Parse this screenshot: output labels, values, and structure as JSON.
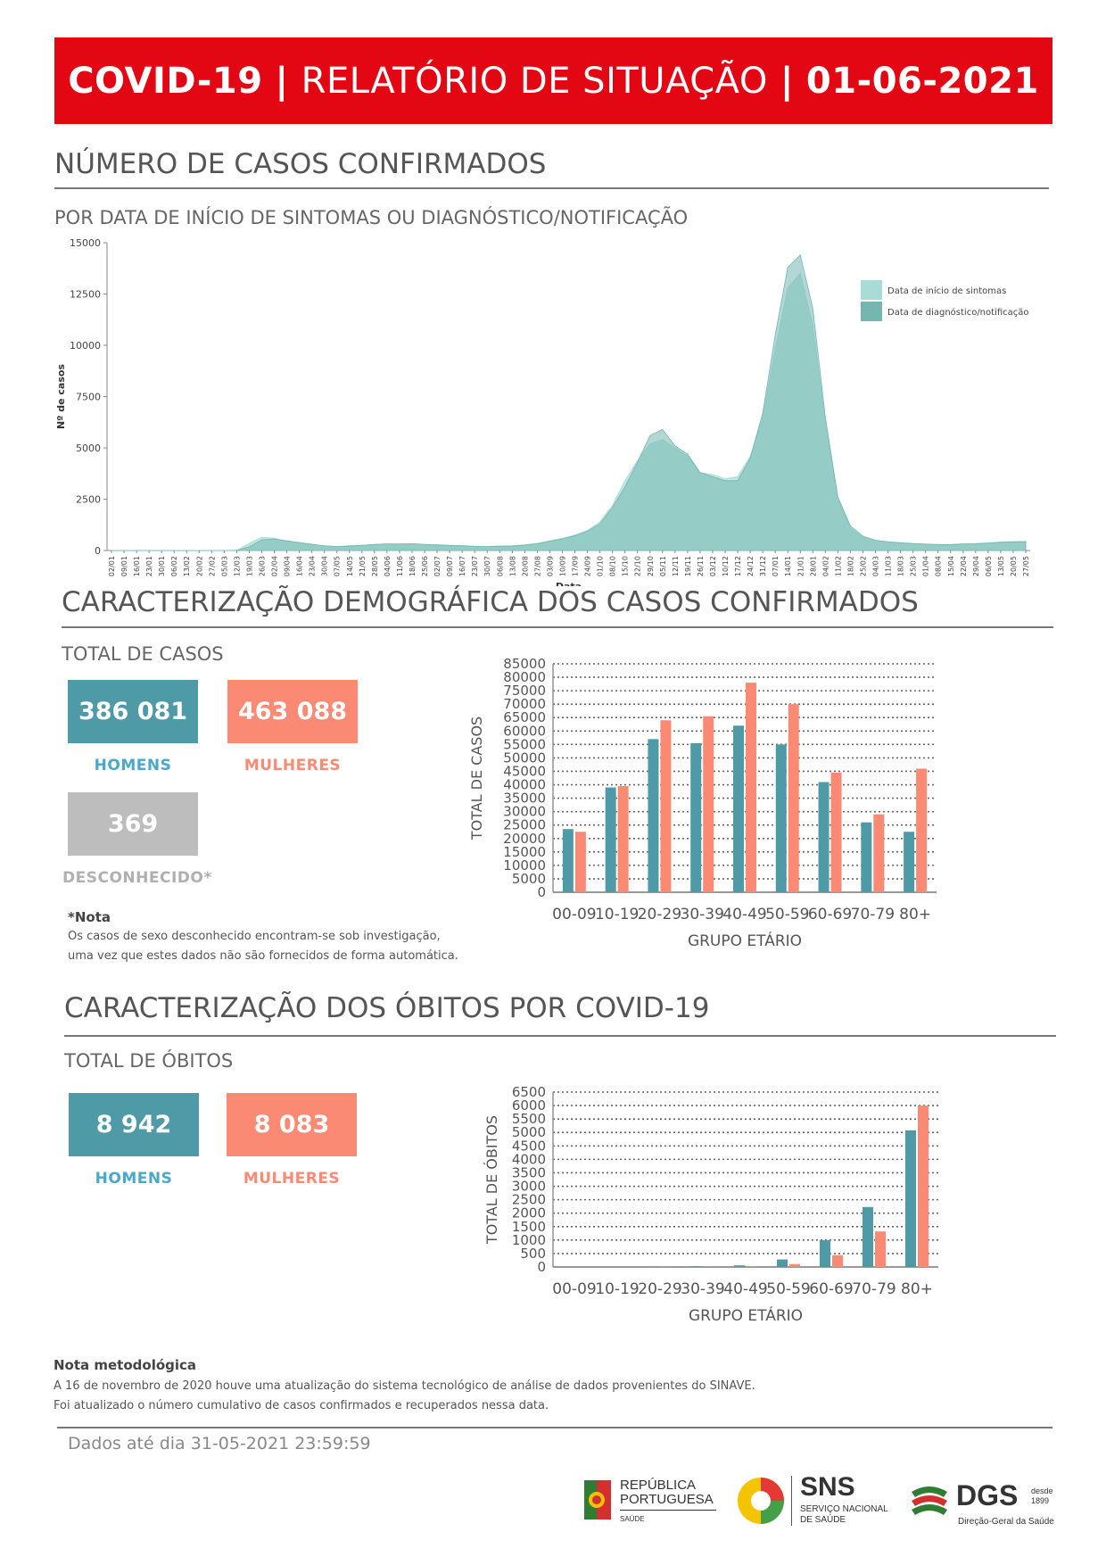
{
  "banner": {
    "part1": "COVID-19",
    "sep1": "|",
    "part2": "RELATÓRIO DE SITUAÇÃO",
    "sep2": "|",
    "date": "01-06-2021"
  },
  "section1": {
    "title": "NÚMERO DE CASOS CONFIRMADOS",
    "subtitle": "POR DATA DE INÍCIO DE SINTOMAS OU DIAGNÓSTICO/NOTIFICAÇÃO"
  },
  "section2": {
    "title": "CARACTERIZAÇÃO DEMOGRÁFICA DOS CASOS CONFIRMADOS",
    "subtitle": "TOTAL DE CASOS",
    "men_value": "386 081",
    "men_label": "HOMENS",
    "women_value": "463 088",
    "women_label": "MULHERES",
    "unknown_value": "369",
    "unknown_label": "DESCONHECIDO*",
    "note_title": "*Nota",
    "note_line1": "Os casos de sexo desconhecido encontram-se sob investigação,",
    "note_line2": "uma vez que estes dados não são fornecidos de forma automática."
  },
  "section3": {
    "title": "CARACTERIZAÇÃO DOS ÓBITOS POR COVID-19",
    "subtitle": "TOTAL DE ÓBITOS",
    "men_value": "8 942",
    "men_label": "HOMENS",
    "women_value": "8 083",
    "women_label": "MULHERES"
  },
  "methodology": {
    "title": "Nota metodológica",
    "line1": "A 16 de novembro de 2020 houve uma atualização do sistema tecnológico de análise de dados provenientes do SINAVE.",
    "line2": "Foi atualizado o número cumulativo de casos confirmados e recuperados nessa data."
  },
  "footer": {
    "data_until": "Dados até dia 31-05-2021 23:59:59",
    "logo_rp_line1": "REPÚBLICA",
    "logo_rp_line2": "PORTUGUESA",
    "logo_rp_line3": "SAÚDE",
    "logo_sns": "SNS",
    "logo_sns_sub1": "SERVIÇO NACIONAL",
    "logo_sns_sub2": "DE SAÚDE",
    "logo_dgs": "DGS",
    "logo_dgs_since1": "desde",
    "logo_dgs_since2": "1899",
    "logo_dgs_sub": "Direção-Geral da Saúde"
  },
  "colors": {
    "banner": "#e30613",
    "men": "#4e9aa6",
    "women": "#fa8a74",
    "unknown": "#bdbdbd",
    "symptoms": "#a8ddd6",
    "diagnosis": "#74b6b0"
  },
  "chart_data": [
    {
      "type": "area",
      "title": "",
      "xlabel": "Data",
      "ylabel": "Nº de casos",
      "ylim": [
        0,
        15000
      ],
      "yticks": [
        0,
        2500,
        5000,
        7500,
        10000,
        12500,
        15000
      ],
      "legend_position": "top-right",
      "x_ticks": [
        "02/01",
        "09/01",
        "16/01",
        "23/01",
        "30/01",
        "06/02",
        "13/02",
        "20/02",
        "27/02",
        "05/03",
        "12/03",
        "19/03",
        "26/03",
        "02/04",
        "09/04",
        "16/04",
        "23/04",
        "30/04",
        "07/05",
        "14/05",
        "21/05",
        "28/05",
        "04/06",
        "11/06",
        "18/06",
        "25/06",
        "02/07",
        "09/07",
        "16/07",
        "23/07",
        "30/07",
        "06/08",
        "13/08",
        "20/08",
        "27/08",
        "03/09",
        "10/09",
        "17/09",
        "24/09",
        "01/10",
        "08/10",
        "15/10",
        "22/10",
        "29/10",
        "05/11",
        "12/11",
        "19/11",
        "26/11",
        "03/12",
        "10/12",
        "17/12",
        "24/12",
        "31/12",
        "07/01",
        "14/01",
        "21/01",
        "28/01",
        "04/02",
        "11/02",
        "18/02",
        "25/02",
        "04/03",
        "11/03",
        "18/03",
        "25/03",
        "01/04",
        "08/04",
        "15/04",
        "22/04",
        "29/04",
        "06/05",
        "13/05",
        "20/05",
        "27/05"
      ],
      "series": [
        {
          "name": "Data de início de sintomas",
          "values": [
            0,
            0,
            0,
            0,
            0,
            0,
            0,
            0,
            0,
            0,
            20,
            350,
            650,
            600,
            450,
            380,
            300,
            220,
            200,
            230,
            260,
            300,
            330,
            320,
            330,
            300,
            280,
            260,
            240,
            210,
            200,
            220,
            230,
            280,
            350,
            480,
            600,
            760,
            980,
            1400,
            2200,
            3400,
            4400,
            5200,
            5400,
            5000,
            4600,
            3800,
            3700,
            3500,
            3600,
            4600,
            6500,
            9800,
            12800,
            13500,
            11000,
            6200,
            2500,
            1100,
            650,
            480,
            420,
            380,
            340,
            320,
            300,
            300,
            330,
            340,
            380,
            420,
            440,
            450
          ]
        },
        {
          "name": "Data de diagnóstico/notificação",
          "values": [
            0,
            0,
            0,
            0,
            0,
            0,
            0,
            0,
            0,
            0,
            5,
            180,
            520,
            560,
            470,
            390,
            310,
            230,
            190,
            220,
            250,
            290,
            320,
            320,
            330,
            300,
            270,
            250,
            230,
            200,
            190,
            210,
            220,
            260,
            330,
            450,
            560,
            720,
            940,
            1300,
            2100,
            3100,
            4300,
            5600,
            5900,
            5100,
            4700,
            3800,
            3600,
            3400,
            3400,
            4500,
            6700,
            10500,
            13800,
            14400,
            11800,
            6500,
            2600,
            1200,
            700,
            500,
            430,
            380,
            340,
            310,
            290,
            280,
            320,
            330,
            360,
            400,
            420,
            430
          ]
        }
      ]
    },
    {
      "type": "bar",
      "xlabel": "GRUPO ETÁRIO",
      "ylabel": "TOTAL DE CASOS",
      "ylim": [
        0,
        85000
      ],
      "yticks": [
        0,
        5000,
        10000,
        15000,
        20000,
        25000,
        30000,
        35000,
        40000,
        45000,
        50000,
        55000,
        60000,
        65000,
        70000,
        75000,
        80000,
        85000
      ],
      "categories": [
        "00-09",
        "10-19",
        "20-29",
        "30-39",
        "40-49",
        "50-59",
        "60-69",
        "70-79",
        "80+"
      ],
      "series": [
        {
          "name": "HOMENS",
          "values": [
            23500,
            39000,
            57000,
            55500,
            62000,
            55000,
            41000,
            26000,
            22500
          ]
        },
        {
          "name": "MULHERES",
          "values": [
            22500,
            39500,
            64000,
            65500,
            78000,
            70000,
            44500,
            29000,
            46000
          ]
        }
      ]
    },
    {
      "type": "bar",
      "xlabel": "GRUPO ETÁRIO",
      "ylabel": "TOTAL DE ÓBITOS",
      "ylim": [
        0,
        6500
      ],
      "yticks": [
        0,
        500,
        1000,
        1500,
        2000,
        2500,
        3000,
        3500,
        4000,
        4500,
        5000,
        5500,
        6000,
        6500
      ],
      "categories": [
        "00-09",
        "10-19",
        "20-29",
        "30-39",
        "40-49",
        "50-59",
        "60-69",
        "70-79",
        "80+"
      ],
      "series": [
        {
          "name": "HOMENS",
          "values": [
            0,
            0,
            5,
            15,
            60,
            280,
            1000,
            2230,
            5080
          ]
        },
        {
          "name": "MULHERES",
          "values": [
            0,
            0,
            3,
            10,
            25,
            110,
            440,
            1320,
            6000
          ]
        }
      ]
    }
  ]
}
